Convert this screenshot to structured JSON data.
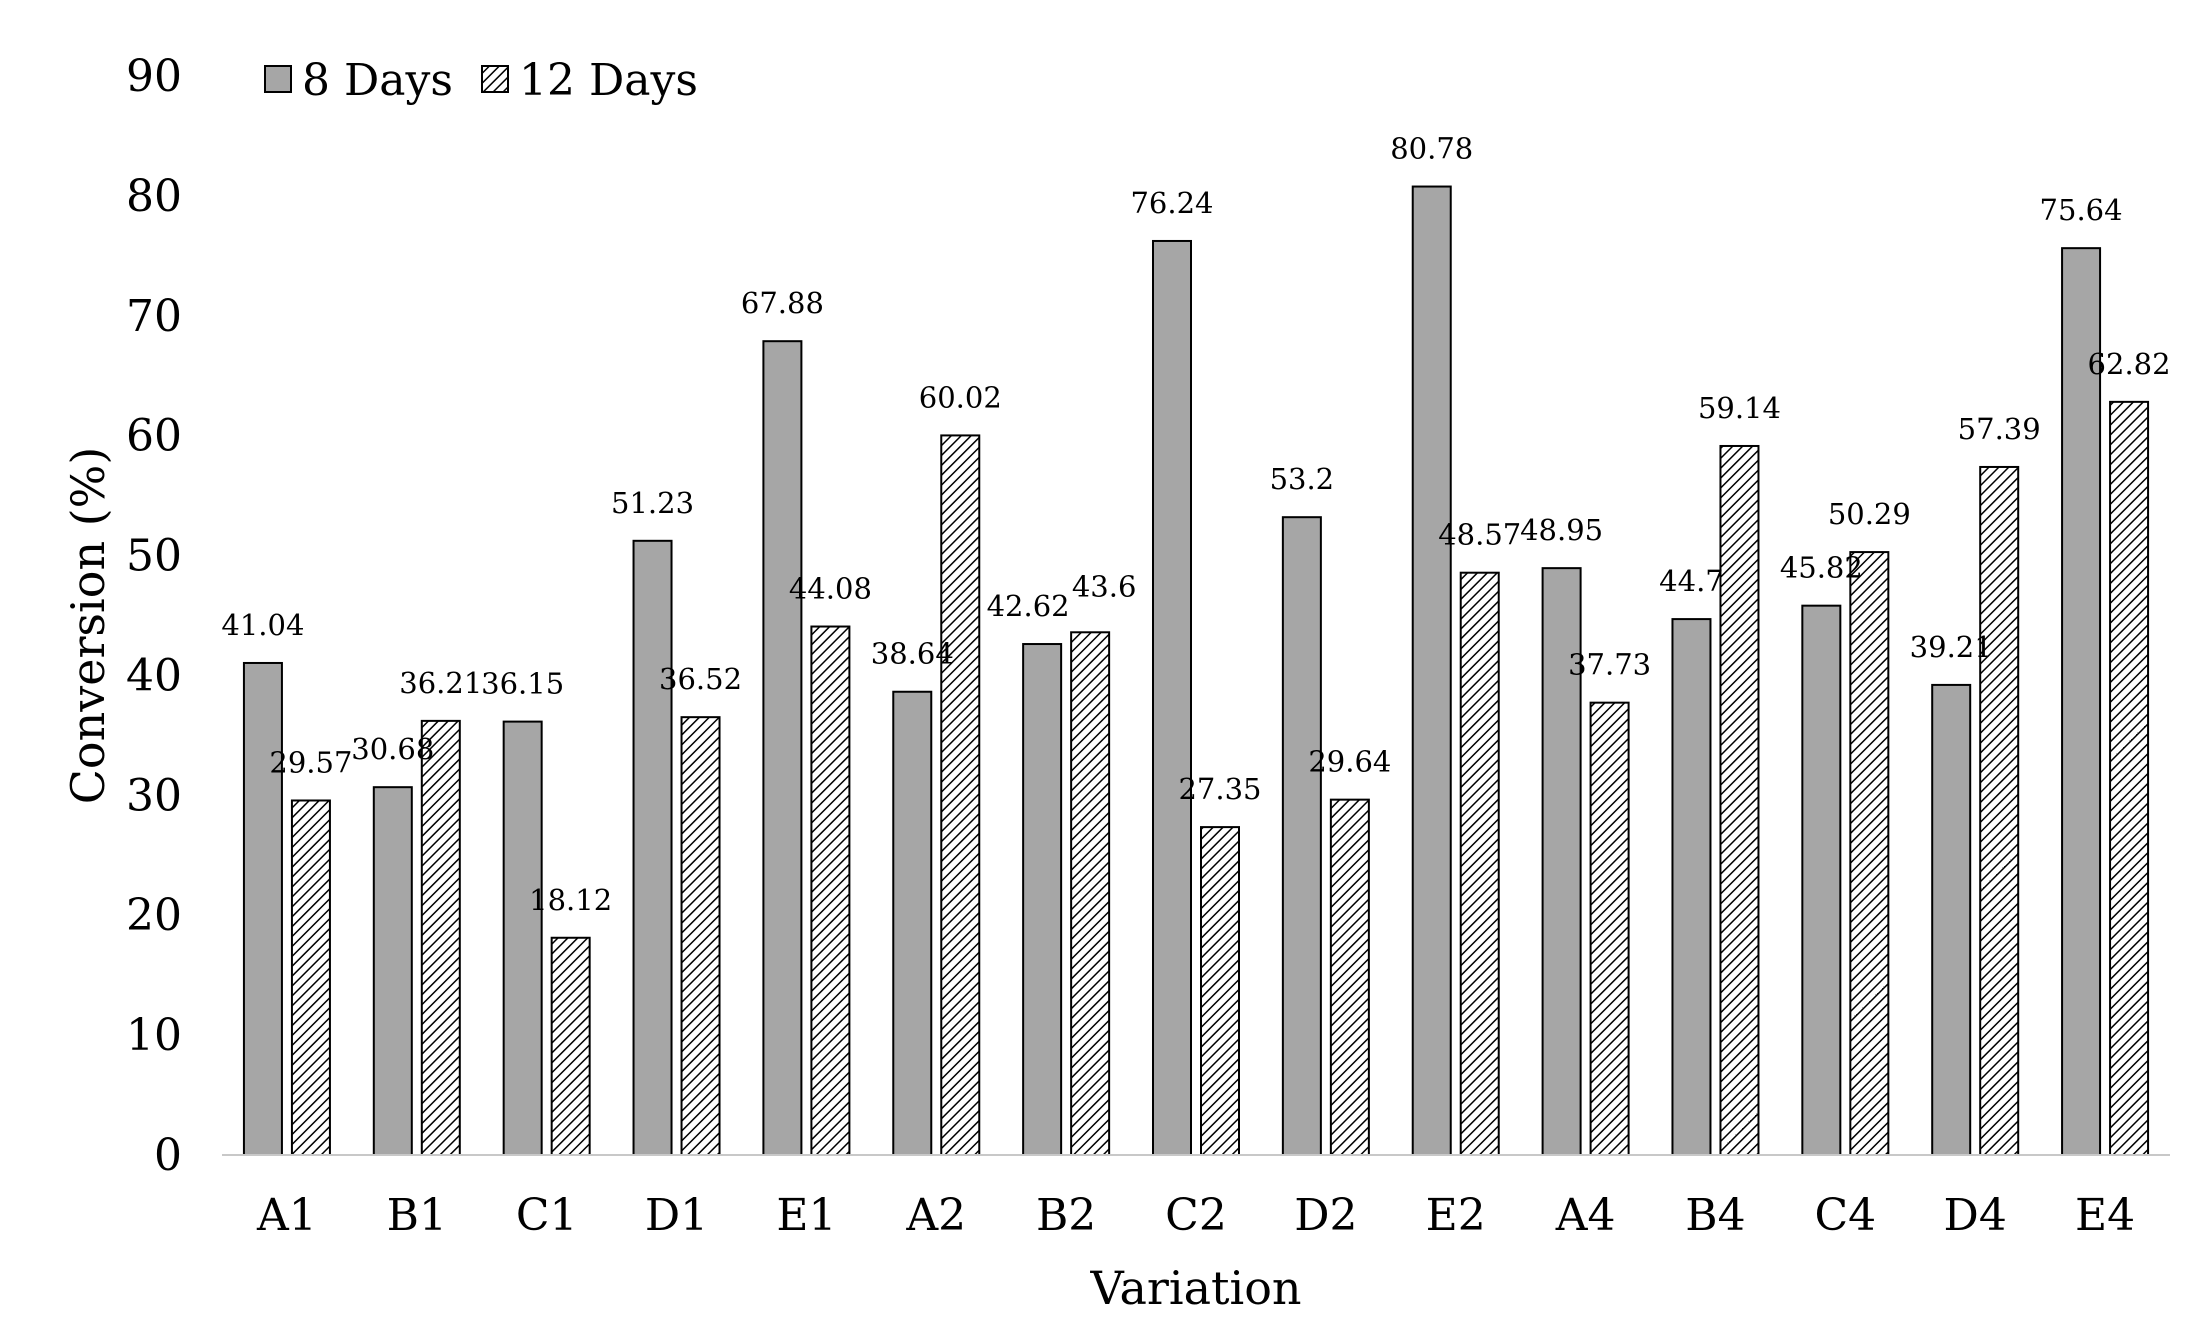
{
  "chart_data": {
    "type": "bar",
    "title": "",
    "xlabel": "Variation",
    "ylabel": "Conversion (%)",
    "ylim": [
      0,
      90
    ],
    "yticks": [
      0,
      10,
      20,
      30,
      40,
      50,
      60,
      70,
      80,
      90
    ],
    "grid": false,
    "legend_position": "top-left",
    "categories": [
      "A1",
      "B1",
      "C1",
      "D1",
      "E1",
      "A2",
      "B2",
      "C2",
      "D2",
      "E2",
      "A4",
      "B4",
      "C4",
      "D4",
      "E4"
    ],
    "series": [
      {
        "name": "8 Days",
        "fill": "solid-gray",
        "color": "#a6a6a6",
        "values": [
          41.04,
          30.68,
          36.15,
          51.23,
          67.88,
          38.64,
          42.62,
          76.24,
          53.2,
          80.78,
          48.95,
          44.7,
          45.82,
          39.21,
          75.64
        ]
      },
      {
        "name": "12 Days",
        "fill": "diagonal-hatch",
        "color": "#000000",
        "values": [
          29.57,
          36.21,
          18.12,
          36.52,
          44.08,
          60.02,
          43.6,
          27.35,
          29.64,
          48.57,
          37.73,
          59.14,
          50.29,
          57.39,
          62.82
        ]
      }
    ]
  }
}
